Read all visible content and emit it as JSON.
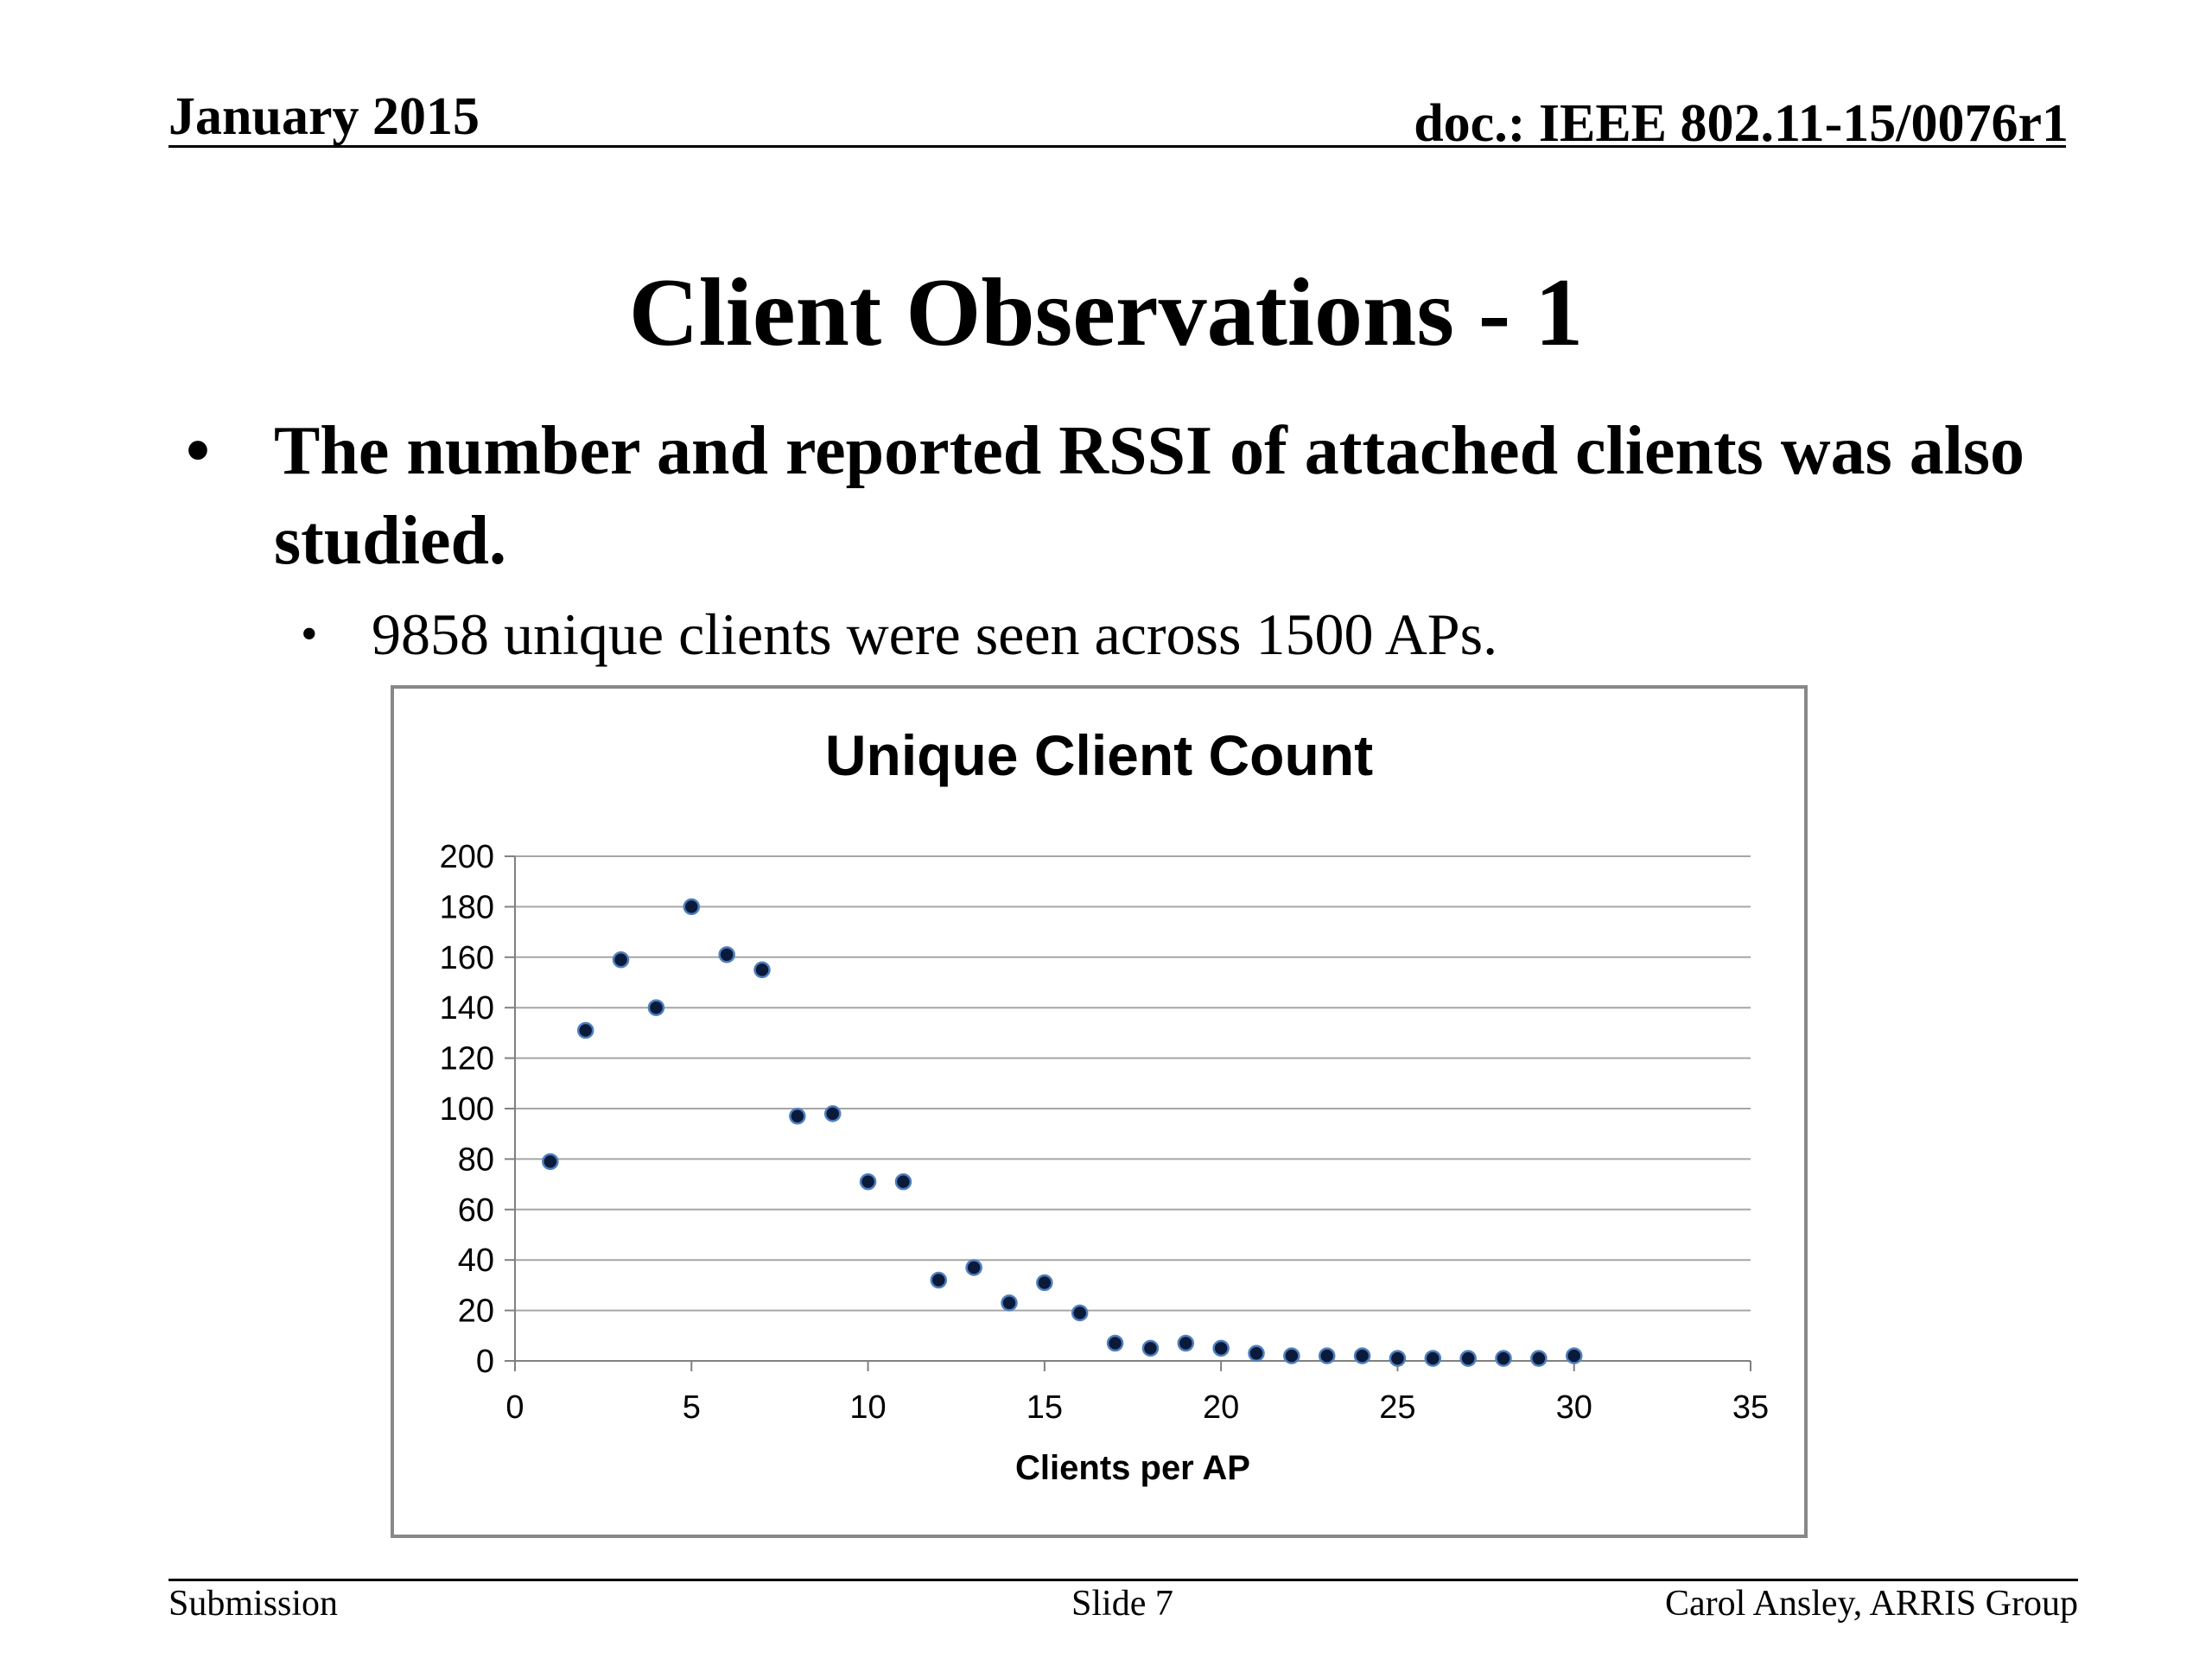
{
  "header": {
    "date": "January 2015",
    "doc": "doc.: IEEE 802.11-15/0076r1"
  },
  "slide": {
    "title": "Client Observations - 1",
    "bullet1": "The number and reported RSSI of attached clients was also studied.",
    "bullet2": "9858 unique clients were seen across 1500 APs.",
    "bullet_glyph": "•"
  },
  "chart_data": {
    "type": "scatter",
    "title": "Unique Client Count",
    "xlabel": "Clients per AP",
    "ylabel": "",
    "xlim": [
      0,
      35
    ],
    "ylim": [
      0,
      200
    ],
    "x_ticks": [
      0,
      5,
      10,
      15,
      20,
      25,
      30,
      35
    ],
    "y_ticks": [
      0,
      20,
      40,
      60,
      80,
      100,
      120,
      140,
      160,
      180,
      200
    ],
    "grid": "horizontal",
    "legend": "none",
    "marker_color": "#0a1a3a",
    "marker_edge_color": "#4f7fbf",
    "series": [
      {
        "x": [
          1,
          2,
          3,
          4,
          5,
          6,
          7,
          8,
          9,
          10,
          11,
          12,
          13,
          14,
          15,
          16,
          17,
          18,
          19,
          20,
          21,
          22,
          23,
          24,
          25,
          26,
          27,
          28,
          29,
          30
        ],
        "y": [
          79,
          131,
          159,
          140,
          180,
          161,
          155,
          97,
          98,
          71,
          71,
          32,
          37,
          23,
          31,
          19,
          7,
          5,
          7,
          5,
          3,
          2,
          2,
          2,
          1,
          1,
          1,
          1,
          1,
          2
        ]
      }
    ]
  },
  "footer": {
    "left": "Submission",
    "center": "Slide 7",
    "right": "Carol Ansley, ARRIS Group"
  }
}
